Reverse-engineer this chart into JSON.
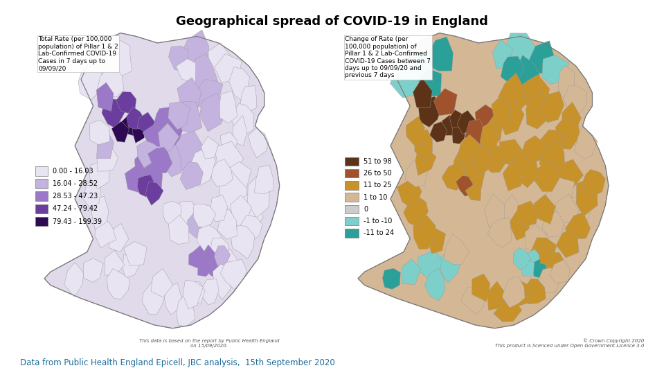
{
  "title": "Geographical spread of COVID-19 in England",
  "title_fontsize": 13,
  "title_fontweight": "bold",
  "footer_text": "Data from Public Health England Epicell, JBC analysis,  15th September 2020",
  "footer_color": "#1a6b9a",
  "footer_fontsize": 8.5,
  "left_map_label": "Total Rate (per 100,000\npopulation) of Pillar 1 & 2\nLab-Confirmed COVID-19\nCases in 7 days up to\n09/09/20",
  "right_map_label": "Change of Rate (per\n100,000 population) of\nPillar 1 & 2 Lab-Confirmed\nCOVID-19 Cases between 7\ndays up to 09/09/20 and\nprevious 7 days",
  "left_legend_labels": [
    "0.00 - 16.03",
    "16.04 - 28.52",
    "28.53 - 47.23",
    "47.24 - 79.42",
    "79.43 - 199.39"
  ],
  "left_legend_colors": [
    "#e8e4f2",
    "#c4b2df",
    "#9b78c8",
    "#6a3d9e",
    "#2d0a52"
  ],
  "right_legend_labels": [
    "51 to 98",
    "26 to 50",
    "11 to 25",
    "1 to 10",
    "0",
    "-1 to -10",
    "-11 to 24"
  ],
  "right_legend_colors": [
    "#5c3317",
    "#a0522d",
    "#c8922a",
    "#d4b896",
    "#cccccc",
    "#7dcfca",
    "#2aa098"
  ],
  "left_footnote": "This data is based on the report by Public Health England\non 15/09/2020.",
  "right_footnote": "© Crown Copyright 2020\nThis product is licenced under Open Government Licence 3.0",
  "bg_color": "#ffffff",
  "label_fontsize": 6.5,
  "legend_fontsize": 7
}
